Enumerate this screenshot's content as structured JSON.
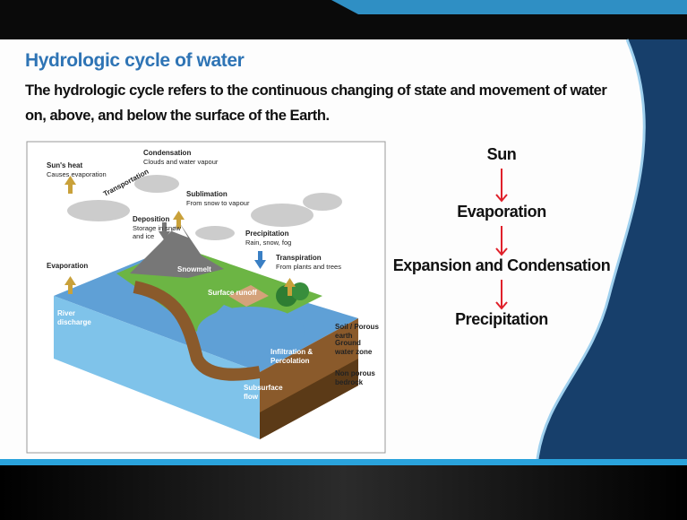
{
  "header": {
    "title": "Hydrologic cycle of water",
    "subtitle": [
      "The hydrologic cycle refers to the continuous changing of state and movement of water",
      "on, above, and below the surface of the Earth."
    ]
  },
  "diagram": {
    "labels": [
      {
        "title": "Sun's heat",
        "detail": "Causes evaporation"
      },
      {
        "title": "Condensation",
        "detail": "Clouds and water vapour"
      },
      {
        "title": "Transportation"
      },
      {
        "title": "Sublimation",
        "detail": "From snow to vapour"
      },
      {
        "title": "Deposition",
        "detail": "Storage in snow and ice"
      },
      {
        "title": "Precipitation",
        "detail": "Rain, snow, fog"
      },
      {
        "title": "Transpiration",
        "detail": "From plants and trees"
      },
      {
        "title": "Evaporation"
      },
      {
        "title": "Snowmelt"
      },
      {
        "title": "Surface runoff"
      },
      {
        "title": "River discharge"
      },
      {
        "title": "Soil / Porous earth"
      },
      {
        "title": "Ground water zone"
      },
      {
        "title": "Infiltration & Percolation"
      },
      {
        "title": "Subsurface flow"
      },
      {
        "title": "Non porous bedrock"
      }
    ]
  },
  "flow": [
    "Sun",
    "Evaporation",
    "Expansion and Condensation",
    "Precipitation"
  ]
}
